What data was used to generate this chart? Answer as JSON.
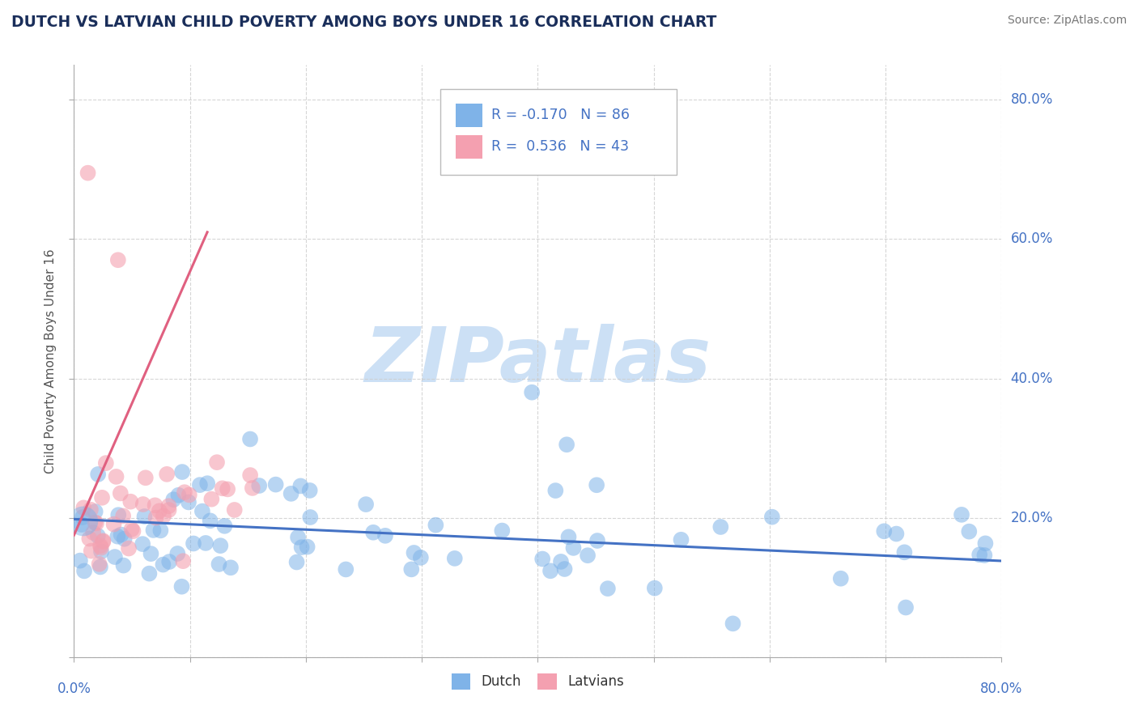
{
  "title": "DUTCH VS LATVIAN CHILD POVERTY AMONG BOYS UNDER 16 CORRELATION CHART",
  "source": "Source: ZipAtlas.com",
  "ylabel": "Child Poverty Among Boys Under 16",
  "xlim": [
    0.0,
    0.8
  ],
  "ylim": [
    0.0,
    0.85
  ],
  "ytick_positions": [
    0.0,
    0.2,
    0.4,
    0.6,
    0.8
  ],
  "xtick_positions": [
    0.0,
    0.1,
    0.2,
    0.3,
    0.4,
    0.5,
    0.6,
    0.7,
    0.8
  ],
  "dutch_color": "#7fb3e8",
  "latvian_color": "#f4a0b0",
  "dutch_R": -0.17,
  "dutch_N": 86,
  "latvian_R": 0.536,
  "latvian_N": 43,
  "trendline_dutch_color": "#4472c4",
  "trendline_latvian_color": "#e06080",
  "label_color": "#4472c4",
  "watermark_color": "#cce0f5",
  "background_color": "#ffffff",
  "grid_color": "#cccccc",
  "title_color": "#1a2e5a",
  "ylabel_color": "#555555"
}
